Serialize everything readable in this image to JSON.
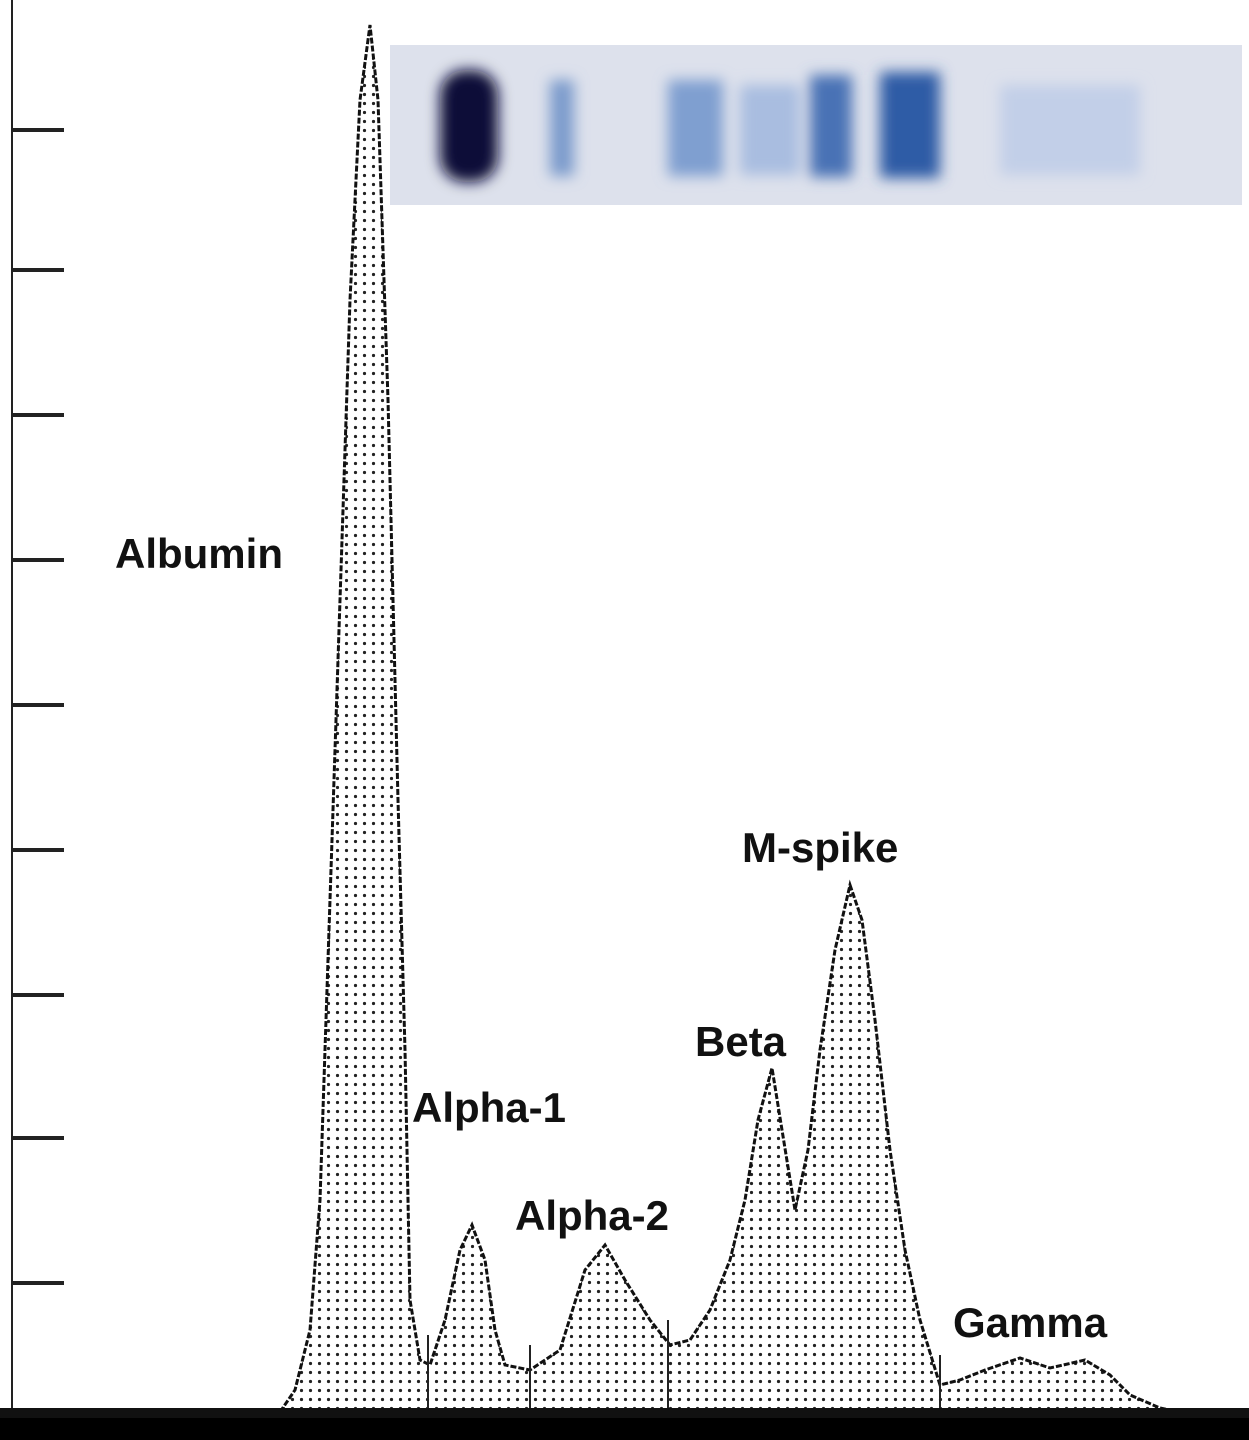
{
  "labels": [
    "Albumin",
    "Alpha-1",
    "Alpha-2",
    "Beta",
    "M-spike",
    "Gamma"
  ]
}
